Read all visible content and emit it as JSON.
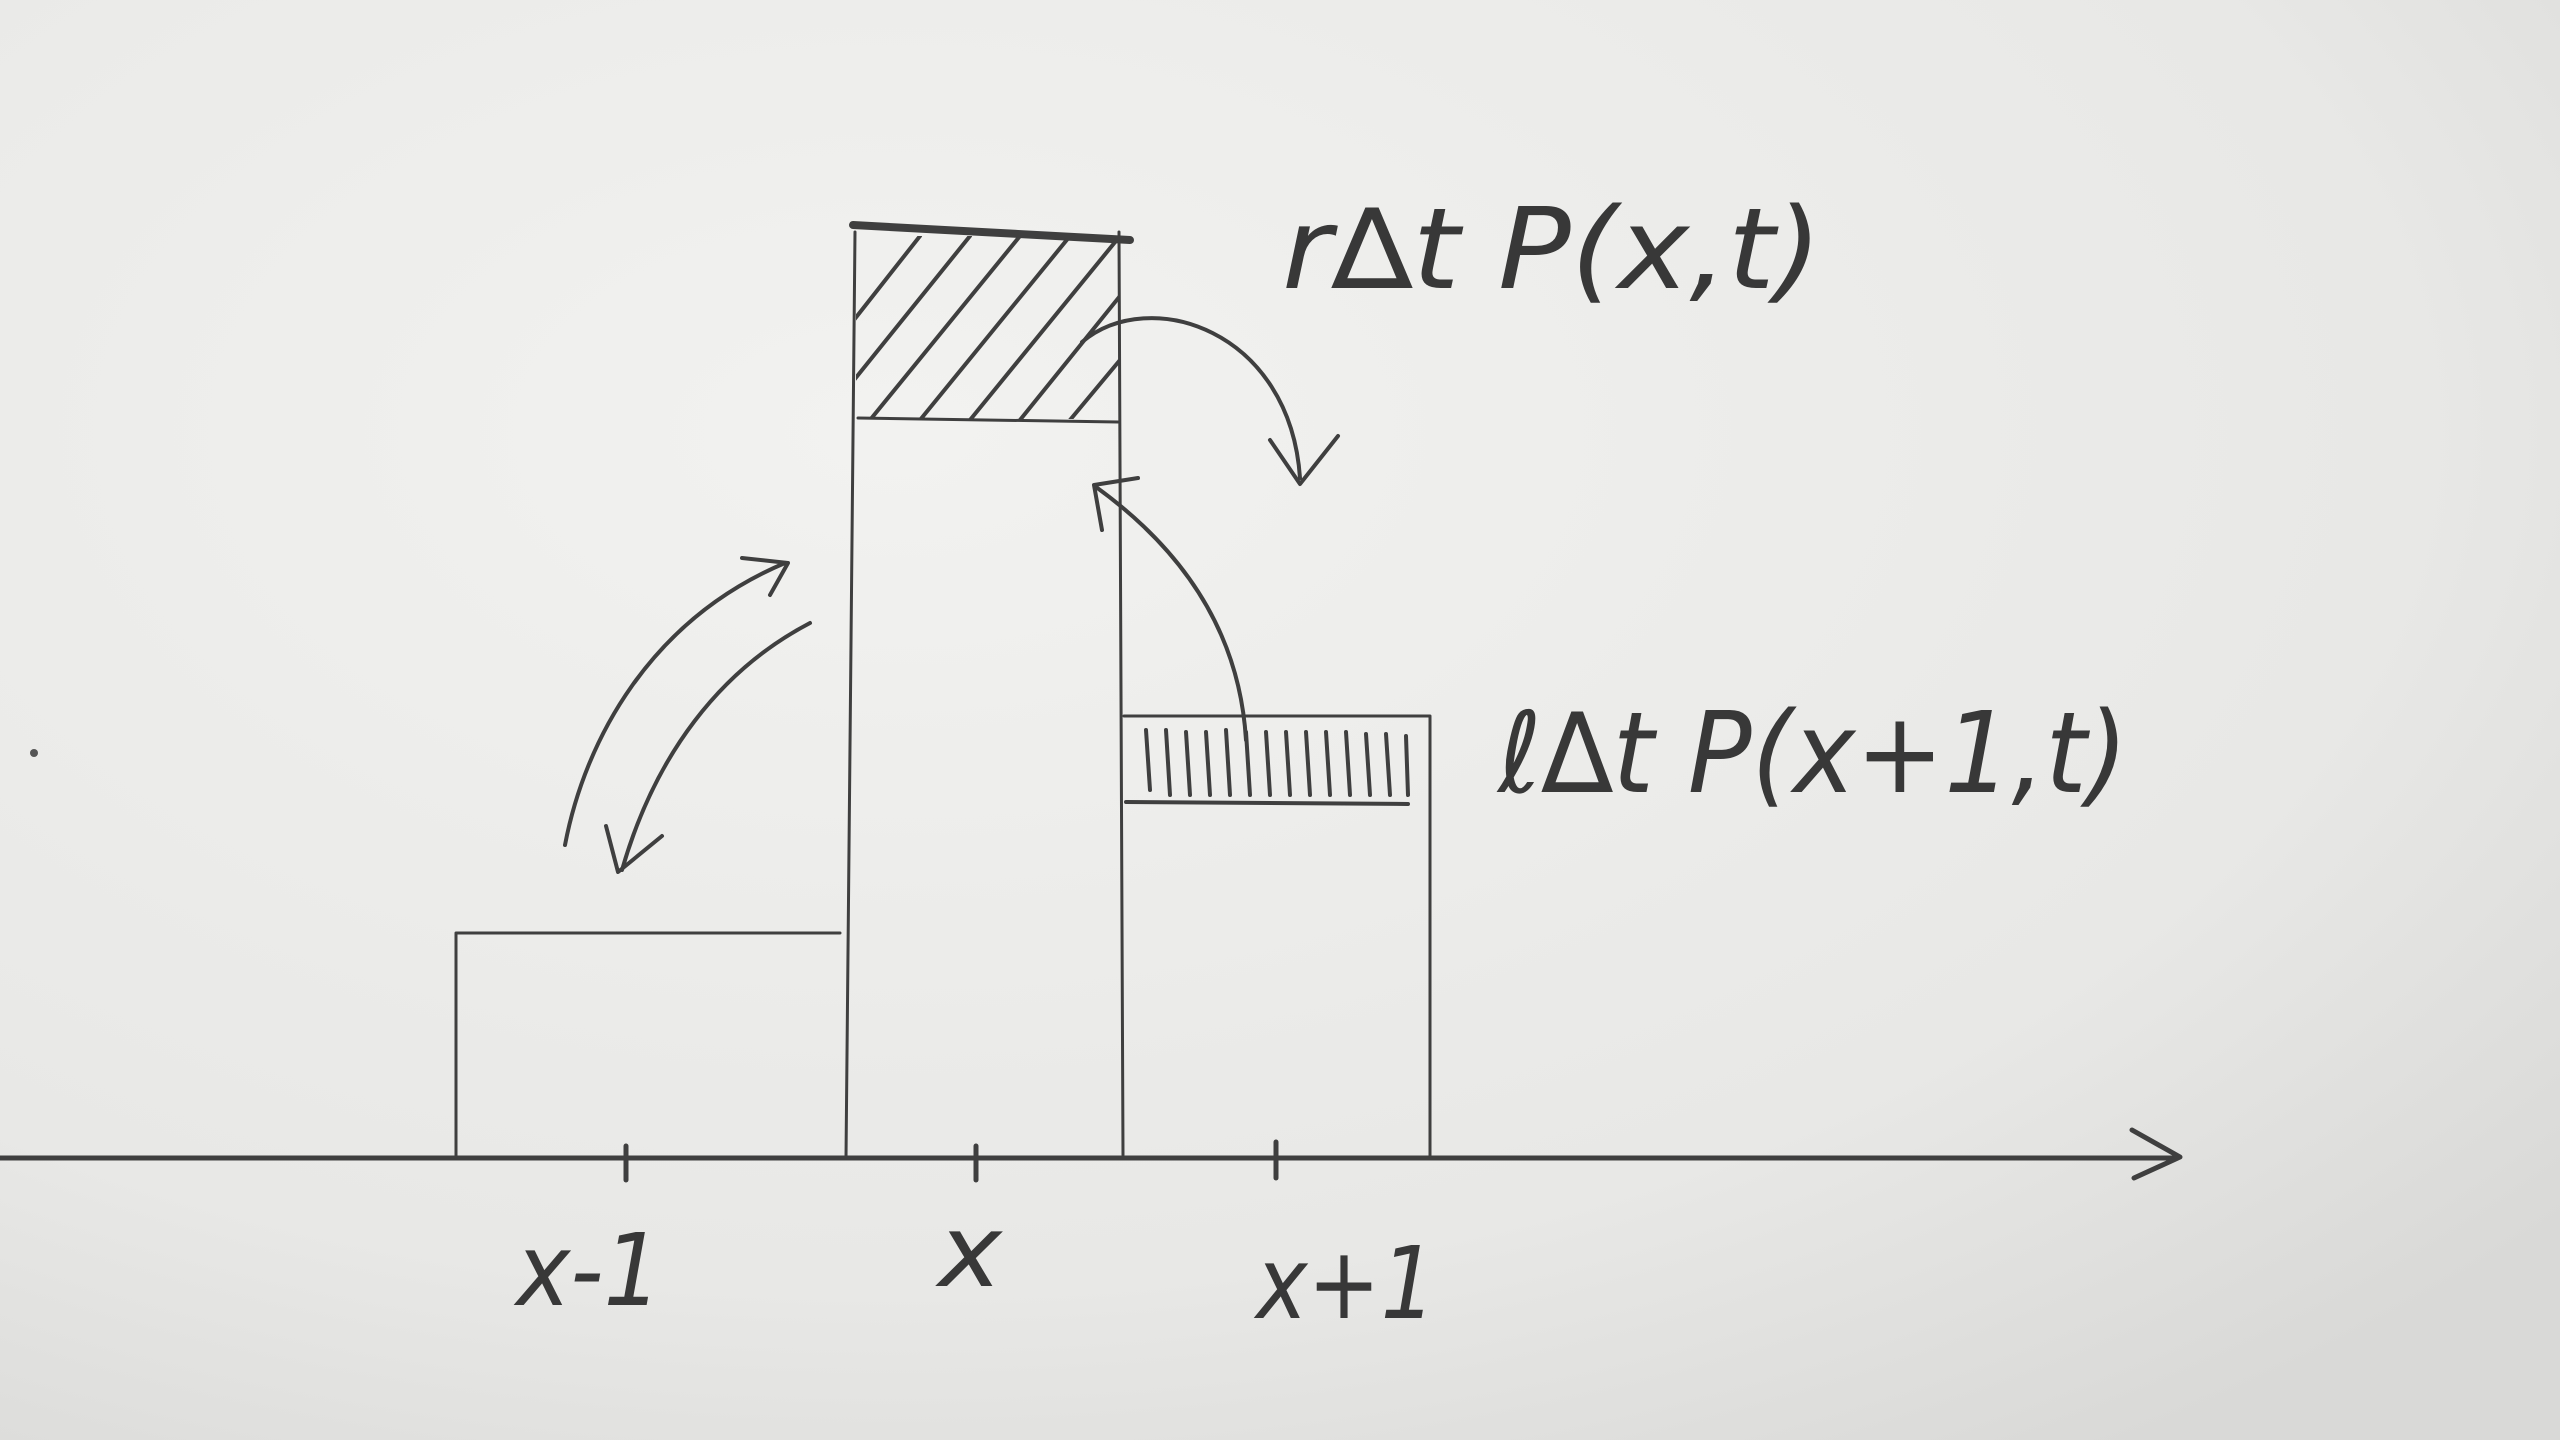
{
  "labels": {
    "right_rate": "r∆t P(x,t)",
    "left_rate": "ℓ∆t P(x+1,t)"
  },
  "axis": {
    "ticks": [
      "x-1",
      "x",
      "x+1"
    ]
  },
  "colors": {
    "paper": "#e9e9e7",
    "pencil": "#3f3f3f"
  }
}
